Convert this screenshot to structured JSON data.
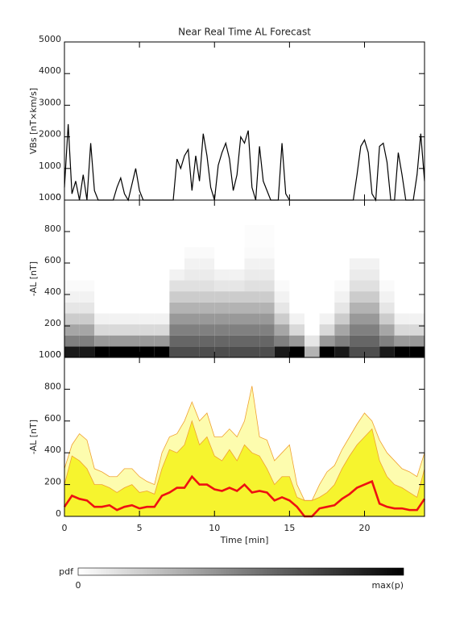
{
  "chart_data": [
    {
      "type": "line",
      "title": "Near Real Time AL Forecast",
      "ylabel": "VBs [nT×km/s]",
      "color": "#000000",
      "xlim": [
        0,
        24
      ],
      "ylim": [
        0,
        5000
      ],
      "yticks": [
        0,
        1000,
        2000,
        3000,
        4000,
        5000
      ],
      "x": [
        0,
        0.25,
        0.5,
        0.75,
        1,
        1.25,
        1.5,
        1.75,
        2,
        2.25,
        2.5,
        2.75,
        3,
        3.25,
        3.5,
        3.75,
        4,
        4.25,
        4.5,
        4.75,
        5,
        5.25,
        5.5,
        5.75,
        6,
        6.25,
        6.5,
        6.75,
        7,
        7.25,
        7.5,
        7.75,
        8,
        8.25,
        8.5,
        8.75,
        9,
        9.25,
        9.5,
        9.75,
        10,
        10.25,
        10.5,
        10.75,
        11,
        11.25,
        11.5,
        11.75,
        12,
        12.25,
        12.5,
        12.75,
        13,
        13.25,
        13.5,
        13.75,
        14,
        14.25,
        14.5,
        14.75,
        15,
        15.25,
        15.5,
        15.75,
        16,
        16.25,
        16.5,
        16.75,
        17,
        17.25,
        17.5,
        17.75,
        18,
        18.25,
        18.5,
        18.75,
        19,
        19.25,
        19.5,
        19.75,
        20,
        20.25,
        20.5,
        20.75,
        21,
        21.25,
        21.5,
        21.75,
        22,
        22.25,
        22.5,
        22.75,
        23,
        23.25,
        23.5,
        23.75,
        24
      ],
      "values": [
        400,
        2400,
        200,
        600,
        0,
        800,
        0,
        1800,
        300,
        0,
        0,
        0,
        0,
        0,
        400,
        700,
        200,
        0,
        500,
        1000,
        300,
        0,
        0,
        0,
        0,
        0,
        0,
        0,
        0,
        0,
        1300,
        1000,
        1400,
        1600,
        300,
        1400,
        600,
        2100,
        1400,
        400,
        0,
        1100,
        1500,
        1800,
        1300,
        300,
        800,
        2000,
        1800,
        2200,
        400,
        0,
        1700,
        600,
        300,
        0,
        0,
        0,
        1800,
        200,
        0,
        0,
        0,
        0,
        0,
        0,
        0,
        0,
        0,
        0,
        0,
        0,
        0,
        0,
        0,
        0,
        0,
        0,
        800,
        1700,
        1900,
        1500,
        200,
        0,
        1700,
        1800,
        1200,
        0,
        0,
        1500,
        800,
        0,
        0,
        0,
        800,
        2100,
        600
      ]
    },
    {
      "type": "heatmap",
      "ylabel": "-AL [nT]",
      "xlim": [
        0,
        24
      ],
      "ylim": [
        0,
        1000
      ],
      "yticks": [
        0,
        200,
        400,
        600,
        800,
        1000
      ],
      "x_bins": [
        0,
        1,
        2,
        3,
        4,
        5,
        6,
        7,
        8,
        9,
        10,
        11,
        12,
        13,
        14,
        15,
        16,
        17,
        18,
        19,
        20,
        21,
        22,
        23,
        24
      ],
      "y_bins": [
        0,
        70,
        140,
        210,
        280,
        350,
        420,
        490,
        560,
        630,
        700,
        770,
        840
      ],
      "z": [
        [
          0.9,
          0.9,
          1,
          1,
          1,
          1,
          1,
          0.7,
          0.7,
          0.7,
          0.7,
          0.7,
          0.7,
          0.7,
          0.9,
          1,
          0.3,
          1,
          0.9,
          0.7,
          0.7,
          0.9,
          1,
          1
        ],
        [
          0.5,
          0.5,
          0.4,
          0.4,
          0.4,
          0.4,
          0.4,
          0.6,
          0.6,
          0.6,
          0.6,
          0.6,
          0.6,
          0.6,
          0.5,
          0.4,
          0.1,
          0.4,
          0.5,
          0.6,
          0.6,
          0.5,
          0.4,
          0.4
        ],
        [
          0.35,
          0.35,
          0.15,
          0.15,
          0.15,
          0.15,
          0.15,
          0.5,
          0.5,
          0.5,
          0.5,
          0.5,
          0.5,
          0.5,
          0.35,
          0.15,
          0,
          0.15,
          0.35,
          0.5,
          0.5,
          0.35,
          0.15,
          0.15
        ],
        [
          0.2,
          0.2,
          0.05,
          0.05,
          0.05,
          0.05,
          0.05,
          0.4,
          0.4,
          0.4,
          0.4,
          0.4,
          0.4,
          0.4,
          0.2,
          0.05,
          0,
          0.05,
          0.2,
          0.4,
          0.4,
          0.2,
          0.05,
          0.05
        ],
        [
          0.1,
          0.1,
          0,
          0,
          0,
          0,
          0,
          0.3,
          0.3,
          0.3,
          0.3,
          0.3,
          0.3,
          0.3,
          0.1,
          0,
          0,
          0,
          0.1,
          0.3,
          0.3,
          0.1,
          0,
          0
        ],
        [
          0.05,
          0.05,
          0,
          0,
          0,
          0,
          0,
          0.2,
          0.2,
          0.2,
          0.2,
          0.2,
          0.2,
          0.2,
          0.05,
          0,
          0,
          0,
          0.05,
          0.2,
          0.2,
          0.05,
          0,
          0
        ],
        [
          0.02,
          0.02,
          0,
          0,
          0,
          0,
          0,
          0.12,
          0.12,
          0.12,
          0.1,
          0.1,
          0.12,
          0.12,
          0.02,
          0,
          0,
          0,
          0.02,
          0.12,
          0.12,
          0.02,
          0,
          0
        ],
        [
          0,
          0,
          0,
          0,
          0,
          0,
          0,
          0.05,
          0.08,
          0.08,
          0.05,
          0.05,
          0.08,
          0.08,
          0,
          0,
          0,
          0,
          0,
          0.08,
          0.08,
          0,
          0,
          0
        ],
        [
          0,
          0,
          0,
          0,
          0,
          0,
          0,
          0,
          0.05,
          0.05,
          0,
          0,
          0.05,
          0.05,
          0,
          0,
          0,
          0,
          0,
          0.05,
          0.05,
          0,
          0,
          0
        ],
        [
          0,
          0,
          0,
          0,
          0,
          0,
          0,
          0,
          0.02,
          0.02,
          0,
          0,
          0.02,
          0.02,
          0,
          0,
          0,
          0,
          0,
          0,
          0,
          0,
          0,
          0
        ],
        [
          0,
          0,
          0,
          0,
          0,
          0,
          0,
          0,
          0,
          0,
          0,
          0,
          0.01,
          0.01,
          0,
          0,
          0,
          0,
          0,
          0,
          0,
          0,
          0,
          0
        ],
        [
          0,
          0,
          0,
          0,
          0,
          0,
          0,
          0,
          0,
          0,
          0,
          0,
          0.01,
          0.01,
          0,
          0,
          0,
          0,
          0,
          0,
          0,
          0,
          0,
          0
        ]
      ],
      "colorbar": {
        "label": "pdf",
        "ticklabels": [
          "0",
          "max(p)"
        ]
      }
    },
    {
      "type": "area",
      "ylabel": "-AL [nT]",
      "xlabel": "Time [min]",
      "xlim": [
        0,
        24
      ],
      "xticks": [
        0,
        5,
        10,
        15,
        20
      ],
      "ylim": [
        0,
        1000
      ],
      "yticks": [
        0,
        200,
        400,
        600,
        800,
        1000
      ],
      "x": [
        0,
        0.5,
        1,
        1.5,
        2,
        2.5,
        3,
        3.5,
        4,
        4.5,
        5,
        5.5,
        6,
        6.5,
        7,
        7.5,
        8,
        8.5,
        9,
        9.5,
        10,
        10.5,
        11,
        11.5,
        12,
        12.5,
        13,
        13.5,
        14,
        14.5,
        15,
        15.5,
        16,
        16.5,
        17,
        17.5,
        18,
        18.5,
        19,
        19.5,
        20,
        20.5,
        21,
        21.5,
        22,
        22.5,
        23,
        23.5,
        24
      ],
      "series": [
        {
          "color": "#fdfcae",
          "line_color": "#f0a030",
          "fill": true,
          "values": [
            300,
            450,
            520,
            480,
            300,
            280,
            250,
            250,
            300,
            300,
            250,
            220,
            200,
            400,
            500,
            520,
            600,
            720,
            600,
            650,
            500,
            500,
            550,
            500,
            600,
            820,
            500,
            480,
            350,
            400,
            450,
            200,
            100,
            100,
            200,
            280,
            320,
            420,
            500,
            580,
            650,
            600,
            480,
            400,
            350,
            300,
            280,
            250,
            400
          ]
        },
        {
          "color": "#f6f42e",
          "line_color": "#f0a030",
          "fill": true,
          "values": [
            200,
            380,
            350,
            300,
            200,
            200,
            180,
            150,
            180,
            200,
            150,
            160,
            140,
            300,
            420,
            400,
            450,
            600,
            450,
            500,
            380,
            350,
            420,
            350,
            450,
            400,
            380,
            300,
            200,
            250,
            250,
            120,
            100,
            100,
            120,
            150,
            200,
            300,
            380,
            450,
            500,
            550,
            350,
            250,
            200,
            180,
            150,
            120,
            300
          ]
        },
        {
          "color": "#ee1111",
          "line_color": "#ee1111",
          "fill": false,
          "values": [
            60,
            130,
            110,
            100,
            60,
            60,
            70,
            40,
            60,
            70,
            50,
            60,
            60,
            130,
            150,
            180,
            180,
            250,
            200,
            200,
            170,
            160,
            180,
            160,
            200,
            150,
            160,
            150,
            100,
            120,
            100,
            60,
            0,
            0,
            50,
            60,
            70,
            110,
            140,
            180,
            200,
            220,
            80,
            60,
            50,
            50,
            40,
            40,
            110
          ]
        }
      ]
    }
  ]
}
